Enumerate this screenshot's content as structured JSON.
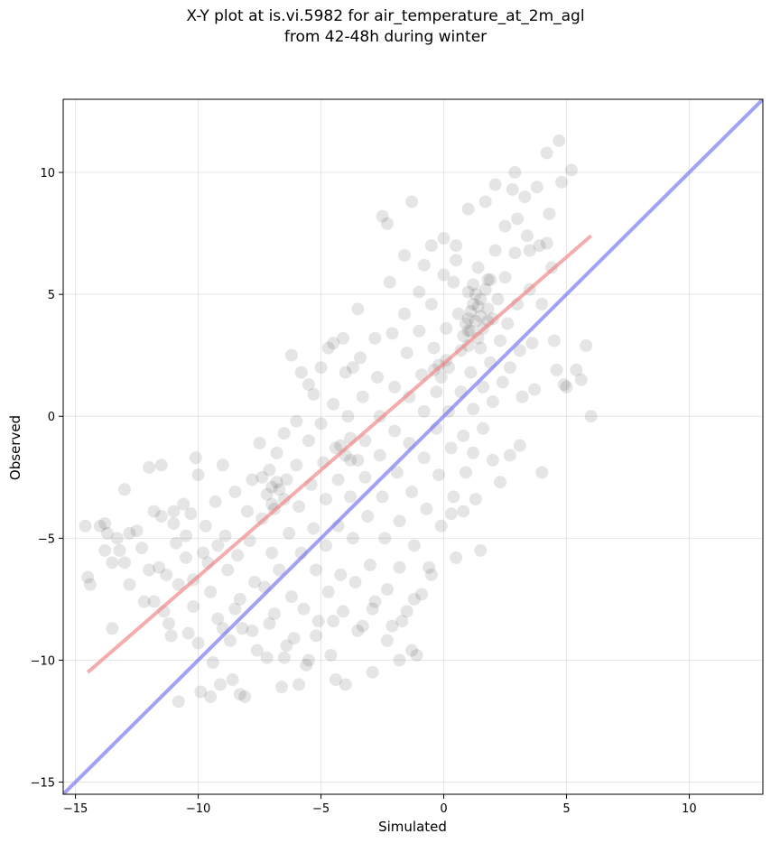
{
  "chart_data": {
    "type": "scatter",
    "title": "X-Y plot at is.vi.5982 for air_temperature_at_2m_agl",
    "subtitle": "from 42-48h during winter",
    "xlabel": "Simulated",
    "ylabel": "Observed",
    "xlim": [
      -15.5,
      13
    ],
    "ylim": [
      -15.5,
      13
    ],
    "xticks": [
      -15,
      -10,
      -5,
      0,
      5,
      10
    ],
    "yticks": [
      -15,
      -10,
      -5,
      0,
      5,
      10
    ],
    "xtick_labels": [
      "−15",
      "−10",
      "−5",
      "0",
      "5",
      "10"
    ],
    "ytick_labels": [
      "−15",
      "−10",
      "−5",
      "0",
      "5",
      "10"
    ],
    "grid": true,
    "colors": {
      "points": "#000000",
      "fit_line": "#f08080",
      "identity_line": "#6f6ff0"
    },
    "lines": [
      {
        "kind": "regression",
        "x": [
          -14.5,
          6.0
        ],
        "y": [
          -10.5,
          7.4
        ]
      },
      {
        "kind": "identity",
        "x": [
          -15.5,
          13
        ],
        "y": [
          -15.5,
          13
        ]
      }
    ],
    "points": [
      [
        -14.6,
        -4.5
      ],
      [
        -14.5,
        -6.6
      ],
      [
        -14.4,
        -6.9
      ],
      [
        -13.8,
        -4.4
      ],
      [
        -13.7,
        -4.8
      ],
      [
        -13.8,
        -5.5
      ],
      [
        -13.5,
        -8.7
      ],
      [
        -13.3,
        -5.0
      ],
      [
        -13.2,
        -5.5
      ],
      [
        -13.0,
        -3.0
      ],
      [
        -13.0,
        -6.0
      ],
      [
        -12.8,
        -6.9
      ],
      [
        -12.3,
        -5.4
      ],
      [
        -12.2,
        -7.6
      ],
      [
        -12.0,
        -6.3
      ],
      [
        -12.0,
        -2.1
      ],
      [
        -11.8,
        -7.6
      ],
      [
        -11.6,
        -6.2
      ],
      [
        -11.5,
        -2.0
      ],
      [
        -11.5,
        -4.1
      ],
      [
        -11.4,
        -8.0
      ],
      [
        -11.3,
        -6.5
      ],
      [
        -11.2,
        -8.5
      ],
      [
        -11.1,
        -9.0
      ],
      [
        -11.0,
        -4.4
      ],
      [
        -10.9,
        -5.2
      ],
      [
        -10.8,
        -6.9
      ],
      [
        -10.8,
        -11.7
      ],
      [
        -10.6,
        -3.6
      ],
      [
        -10.5,
        -5.8
      ],
      [
        -10.4,
        -8.9
      ],
      [
        -10.3,
        -4.0
      ],
      [
        -10.2,
        -6.7
      ],
      [
        -10.1,
        -1.7
      ],
      [
        -10.0,
        -2.4
      ],
      [
        -10.0,
        -9.3
      ],
      [
        -9.9,
        -11.3
      ],
      [
        -9.7,
        -4.5
      ],
      [
        -9.6,
        -6.0
      ],
      [
        -9.5,
        -7.2
      ],
      [
        -9.4,
        -10.1
      ],
      [
        -9.3,
        -3.5
      ],
      [
        -9.2,
        -5.3
      ],
      [
        -9.2,
        -8.3
      ],
      [
        -9.1,
        -11.0
      ],
      [
        -9.0,
        -2.0
      ],
      [
        -8.9,
        -4.9
      ],
      [
        -8.8,
        -6.3
      ],
      [
        -8.7,
        -9.2
      ],
      [
        -8.6,
        -10.8
      ],
      [
        -8.5,
        -3.1
      ],
      [
        -8.4,
        -5.7
      ],
      [
        -8.3,
        -7.5
      ],
      [
        -8.2,
        -8.7
      ],
      [
        -8.1,
        -11.5
      ],
      [
        -8.0,
        -3.9
      ],
      [
        -7.9,
        -5.1
      ],
      [
        -7.8,
        -2.6
      ],
      [
        -7.7,
        -6.8
      ],
      [
        -7.6,
        -9.6
      ],
      [
        -7.5,
        -1.1
      ],
      [
        -7.4,
        -4.2
      ],
      [
        -7.3,
        -7.0
      ],
      [
        -7.2,
        -9.9
      ],
      [
        -7.1,
        -2.2
      ],
      [
        -7.0,
        -3.6
      ],
      [
        -7.0,
        -5.6
      ],
      [
        -6.9,
        -8.1
      ],
      [
        -6.8,
        -1.5
      ],
      [
        -6.7,
        -3.0
      ],
      [
        -6.7,
        -6.3
      ],
      [
        -6.6,
        -11.1
      ],
      [
        -6.5,
        -0.7
      ],
      [
        -6.4,
        -2.6
      ],
      [
        -6.3,
        -4.8
      ],
      [
        -6.2,
        -7.4
      ],
      [
        -6.1,
        -9.1
      ],
      [
        -6.0,
        -0.2
      ],
      [
        -6.0,
        -2.0
      ],
      [
        -5.9,
        -3.7
      ],
      [
        -5.8,
        -5.6
      ],
      [
        -5.7,
        -7.9
      ],
      [
        -5.6,
        -10.2
      ],
      [
        -5.5,
        1.3
      ],
      [
        -5.5,
        -1.0
      ],
      [
        -5.4,
        -2.8
      ],
      [
        -5.3,
        -4.6
      ],
      [
        -5.2,
        -6.3
      ],
      [
        -5.1,
        -8.4
      ],
      [
        -5.0,
        2.0
      ],
      [
        -5.0,
        -0.3
      ],
      [
        -4.9,
        -1.9
      ],
      [
        -4.8,
        -3.4
      ],
      [
        -4.8,
        -5.3
      ],
      [
        -4.7,
        -7.2
      ],
      [
        -4.6,
        -9.8
      ],
      [
        -4.5,
        3.0
      ],
      [
        -4.5,
        0.5
      ],
      [
        -4.4,
        -1.3
      ],
      [
        -4.3,
        -2.6
      ],
      [
        -4.3,
        -4.5
      ],
      [
        -4.2,
        -6.5
      ],
      [
        -4.1,
        -8.0
      ],
      [
        -4.0,
        -11.0
      ],
      [
        -4.0,
        1.8
      ],
      [
        -3.9,
        0.0
      ],
      [
        -3.8,
        -1.8
      ],
      [
        -3.8,
        -3.3
      ],
      [
        -3.7,
        -5.0
      ],
      [
        -3.6,
        -6.8
      ],
      [
        -3.5,
        -8.8
      ],
      [
        -3.5,
        4.4
      ],
      [
        -3.4,
        2.4
      ],
      [
        -3.3,
        0.8
      ],
      [
        -3.2,
        -1.0
      ],
      [
        -3.2,
        -2.5
      ],
      [
        -3.1,
        -4.1
      ],
      [
        -3.0,
        -6.1
      ],
      [
        -2.9,
        -7.9
      ],
      [
        -2.9,
        -10.5
      ],
      [
        -2.8,
        3.2
      ],
      [
        -2.7,
        1.6
      ],
      [
        -2.6,
        0.0
      ],
      [
        -2.6,
        -1.6
      ],
      [
        -2.5,
        -3.3
      ],
      [
        -2.4,
        -5.0
      ],
      [
        -2.3,
        -7.1
      ],
      [
        -2.3,
        -9.2
      ],
      [
        -2.2,
        5.5
      ],
      [
        -2.1,
        3.4
      ],
      [
        -2.0,
        1.2
      ],
      [
        -2.0,
        -0.6
      ],
      [
        -1.9,
        -2.3
      ],
      [
        -1.8,
        -4.3
      ],
      [
        -1.8,
        -6.2
      ],
      [
        -1.7,
        -8.4
      ],
      [
        -1.6,
        6.6
      ],
      [
        -1.6,
        4.2
      ],
      [
        -1.5,
        2.6
      ],
      [
        -1.4,
        0.8
      ],
      [
        -1.4,
        -1.1
      ],
      [
        -1.3,
        -3.1
      ],
      [
        -1.2,
        -5.3
      ],
      [
        -1.2,
        -7.5
      ],
      [
        -1.1,
        -9.8
      ],
      [
        -1.0,
        5.1
      ],
      [
        -1.0,
        3.5
      ],
      [
        -0.9,
        1.7
      ],
      [
        -0.8,
        0.2
      ],
      [
        -0.8,
        -1.7
      ],
      [
        -0.7,
        -3.8
      ],
      [
        -0.6,
        -6.2
      ],
      [
        -0.5,
        7.0
      ],
      [
        -0.5,
        4.6
      ],
      [
        -0.4,
        2.8
      ],
      [
        -0.3,
        1.0
      ],
      [
        -0.3,
        -0.5
      ],
      [
        -0.2,
        -2.4
      ],
      [
        -0.1,
        -4.5
      ],
      [
        0.0,
        7.3
      ],
      [
        0.0,
        5.8
      ],
      [
        0.1,
        3.6
      ],
      [
        0.2,
        2.0
      ],
      [
        0.2,
        0.2
      ],
      [
        0.3,
        -1.3
      ],
      [
        0.4,
        -3.3
      ],
      [
        0.5,
        -5.8
      ],
      [
        0.5,
        6.4
      ],
      [
        0.6,
        4.2
      ],
      [
        0.7,
        2.7
      ],
      [
        0.7,
        1.0
      ],
      [
        0.8,
        -0.8
      ],
      [
        0.9,
        -2.3
      ],
      [
        1.0,
        8.5
      ],
      [
        1.0,
        5.1
      ],
      [
        1.0,
        3.5
      ],
      [
        1.1,
        1.8
      ],
      [
        1.2,
        0.3
      ],
      [
        1.2,
        -1.5
      ],
      [
        1.3,
        -3.4
      ],
      [
        1.4,
        6.1
      ],
      [
        1.4,
        4.5
      ],
      [
        1.5,
        2.8
      ],
      [
        1.6,
        1.2
      ],
      [
        1.6,
        -0.5
      ],
      [
        1.7,
        8.8
      ],
      [
        1.8,
        5.6
      ],
      [
        1.8,
        3.9
      ],
      [
        1.9,
        2.2
      ],
      [
        2.0,
        0.6
      ],
      [
        2.0,
        -1.8
      ],
      [
        2.1,
        6.8
      ],
      [
        2.2,
        4.8
      ],
      [
        2.3,
        3.1
      ],
      [
        2.4,
        1.4
      ],
      [
        2.5,
        7.8
      ],
      [
        2.5,
        5.7
      ],
      [
        2.6,
        3.8
      ],
      [
        2.7,
        2.0
      ],
      [
        2.8,
        9.3
      ],
      [
        2.9,
        6.7
      ],
      [
        3.0,
        4.6
      ],
      [
        3.1,
        2.7
      ],
      [
        3.2,
        0.8
      ],
      [
        3.3,
        9.0
      ],
      [
        3.4,
        7.4
      ],
      [
        3.5,
        5.2
      ],
      [
        3.6,
        3.0
      ],
      [
        3.7,
        1.1
      ],
      [
        3.8,
        9.4
      ],
      [
        3.9,
        7.0
      ],
      [
        4.0,
        4.6
      ],
      [
        4.0,
        -2.3
      ],
      [
        4.2,
        10.8
      ],
      [
        4.3,
        8.3
      ],
      [
        4.4,
        6.1
      ],
      [
        4.5,
        3.1
      ],
      [
        4.6,
        1.9
      ],
      [
        4.7,
        11.3
      ],
      [
        4.8,
        9.6
      ],
      [
        4.9,
        1.3
      ],
      [
        5.0,
        1.2
      ],
      [
        5.2,
        10.1
      ],
      [
        5.4,
        1.9
      ],
      [
        5.6,
        1.5
      ],
      [
        5.8,
        2.9
      ],
      [
        6.0,
        0.0
      ],
      [
        1.0,
        4.0
      ],
      [
        1.1,
        4.3
      ],
      [
        1.2,
        4.6
      ],
      [
        1.3,
        5.0
      ],
      [
        1.4,
        3.2
      ],
      [
        1.5,
        4.8
      ],
      [
        1.6,
        3.6
      ],
      [
        1.7,
        5.2
      ],
      [
        0.9,
        3.8
      ],
      [
        0.8,
        3.3
      ],
      [
        1.0,
        2.9
      ],
      [
        1.3,
        3.9
      ],
      [
        1.5,
        4.1
      ],
      [
        1.8,
        4.4
      ],
      [
        1.9,
        5.6
      ],
      [
        2.0,
        4.0
      ],
      [
        1.2,
        5.4
      ],
      [
        1.1,
        3.5
      ],
      [
        -7.0,
        -2.9
      ],
      [
        -7.2,
        -3.2
      ],
      [
        -6.8,
        -2.7
      ],
      [
        -6.5,
        -3.4
      ],
      [
        -7.4,
        -2.5
      ],
      [
        -6.9,
        -3.8
      ],
      [
        -4.2,
        -1.2
      ],
      [
        -4.0,
        -1.6
      ],
      [
        -3.8,
        -0.9
      ],
      [
        -3.5,
        -1.8
      ],
      [
        -0.2,
        2.1
      ],
      [
        0.1,
        2.3
      ],
      [
        -0.4,
        1.9
      ],
      [
        -0.1,
        1.6
      ],
      [
        -10.5,
        -4.9
      ],
      [
        -11.0,
        -3.9
      ],
      [
        -9.8,
        -5.6
      ],
      [
        -12.5,
        -4.7
      ],
      [
        -13.5,
        -6.0
      ],
      [
        -2.5,
        8.2
      ],
      [
        -2.3,
        7.9
      ],
      [
        -1.3,
        8.8
      ],
      [
        -0.8,
        6.2
      ],
      [
        0.4,
        5.5
      ],
      [
        3.0,
        8.1
      ],
      [
        3.5,
        6.8
      ],
      [
        4.2,
        7.1
      ],
      [
        2.1,
        9.5
      ],
      [
        2.9,
        10.0
      ],
      [
        0.5,
        7.0
      ],
      [
        -6.2,
        2.5
      ],
      [
        -5.8,
        1.8
      ],
      [
        -5.3,
        0.9
      ],
      [
        -4.7,
        2.8
      ],
      [
        -4.1,
        3.2
      ],
      [
        -3.7,
        2.0
      ],
      [
        -6.5,
        -9.9
      ],
      [
        -5.9,
        -11.0
      ],
      [
        -4.4,
        -10.8
      ],
      [
        -5.5,
        -10.0
      ],
      [
        -1.8,
        -10.0
      ],
      [
        -1.3,
        -9.6
      ],
      [
        -9.5,
        -11.5
      ],
      [
        -8.3,
        -11.4
      ],
      [
        -14.0,
        -4.5
      ],
      [
        -12.8,
        -4.8
      ],
      [
        -11.8,
        -3.9
      ],
      [
        -10.2,
        -7.8
      ],
      [
        -9.0,
        -8.7
      ],
      [
        -8.5,
        -7.9
      ],
      [
        -7.8,
        -8.8
      ],
      [
        -7.1,
        -8.5
      ],
      [
        -6.4,
        -9.4
      ],
      [
        -5.2,
        -9.0
      ],
      [
        -4.5,
        -8.4
      ],
      [
        -3.3,
        -8.6
      ],
      [
        -2.8,
        -7.6
      ],
      [
        -2.1,
        -8.6
      ],
      [
        -1.5,
        -8.0
      ],
      [
        -0.9,
        -7.3
      ],
      [
        -0.5,
        -6.5
      ],
      [
        0.3,
        -4.0
      ],
      [
        0.8,
        -3.9
      ],
      [
        1.5,
        -5.5
      ],
      [
        2.3,
        -2.7
      ],
      [
        2.7,
        -1.6
      ],
      [
        3.1,
        -1.2
      ]
    ]
  }
}
